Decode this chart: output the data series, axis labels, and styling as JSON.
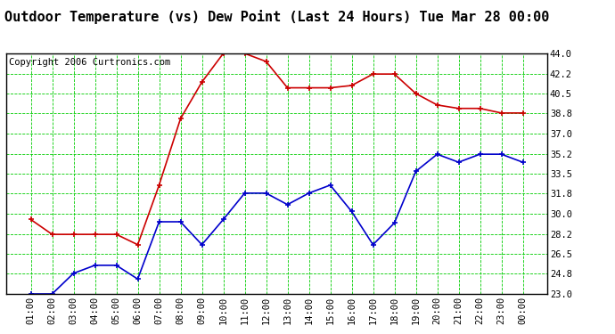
{
  "title": "Outdoor Temperature (vs) Dew Point (Last 24 Hours) Tue Mar 28 00:00",
  "copyright": "Copyright 2006 Curtronics.com",
  "x_labels": [
    "01:00",
    "02:00",
    "03:00",
    "04:00",
    "05:00",
    "06:00",
    "07:00",
    "08:00",
    "09:00",
    "10:00",
    "11:00",
    "12:00",
    "13:00",
    "14:00",
    "15:00",
    "16:00",
    "17:00",
    "18:00",
    "19:00",
    "20:00",
    "21:00",
    "22:00",
    "23:00",
    "00:00"
  ],
  "temp_values": [
    29.5,
    28.2,
    28.2,
    28.2,
    28.2,
    27.3,
    32.5,
    38.3,
    41.5,
    44.0,
    44.0,
    43.3,
    41.0,
    41.0,
    41.0,
    41.2,
    42.2,
    42.2,
    40.5,
    39.5,
    39.2,
    39.2,
    38.8,
    38.8
  ],
  "dew_values": [
    23.0,
    23.0,
    24.8,
    25.5,
    25.5,
    24.3,
    29.3,
    29.3,
    27.3,
    29.5,
    31.8,
    31.8,
    30.8,
    31.8,
    32.5,
    30.2,
    27.3,
    29.2,
    33.7,
    35.2,
    34.5,
    35.2,
    35.2,
    34.5
  ],
  "temp_color": "#cc0000",
  "dew_color": "#0000cc",
  "bg_color": "#ffffff",
  "plot_bg_color": "#ffffff",
  "grid_color": "#00cc00",
  "border_color": "#000000",
  "ylim": [
    23.0,
    44.0
  ],
  "yticks": [
    23.0,
    24.8,
    26.5,
    28.2,
    30.0,
    31.8,
    33.5,
    35.2,
    37.0,
    38.8,
    40.5,
    42.2,
    44.0
  ],
  "title_fontsize": 11,
  "copyright_fontsize": 7.5,
  "tick_fontsize": 7.5
}
